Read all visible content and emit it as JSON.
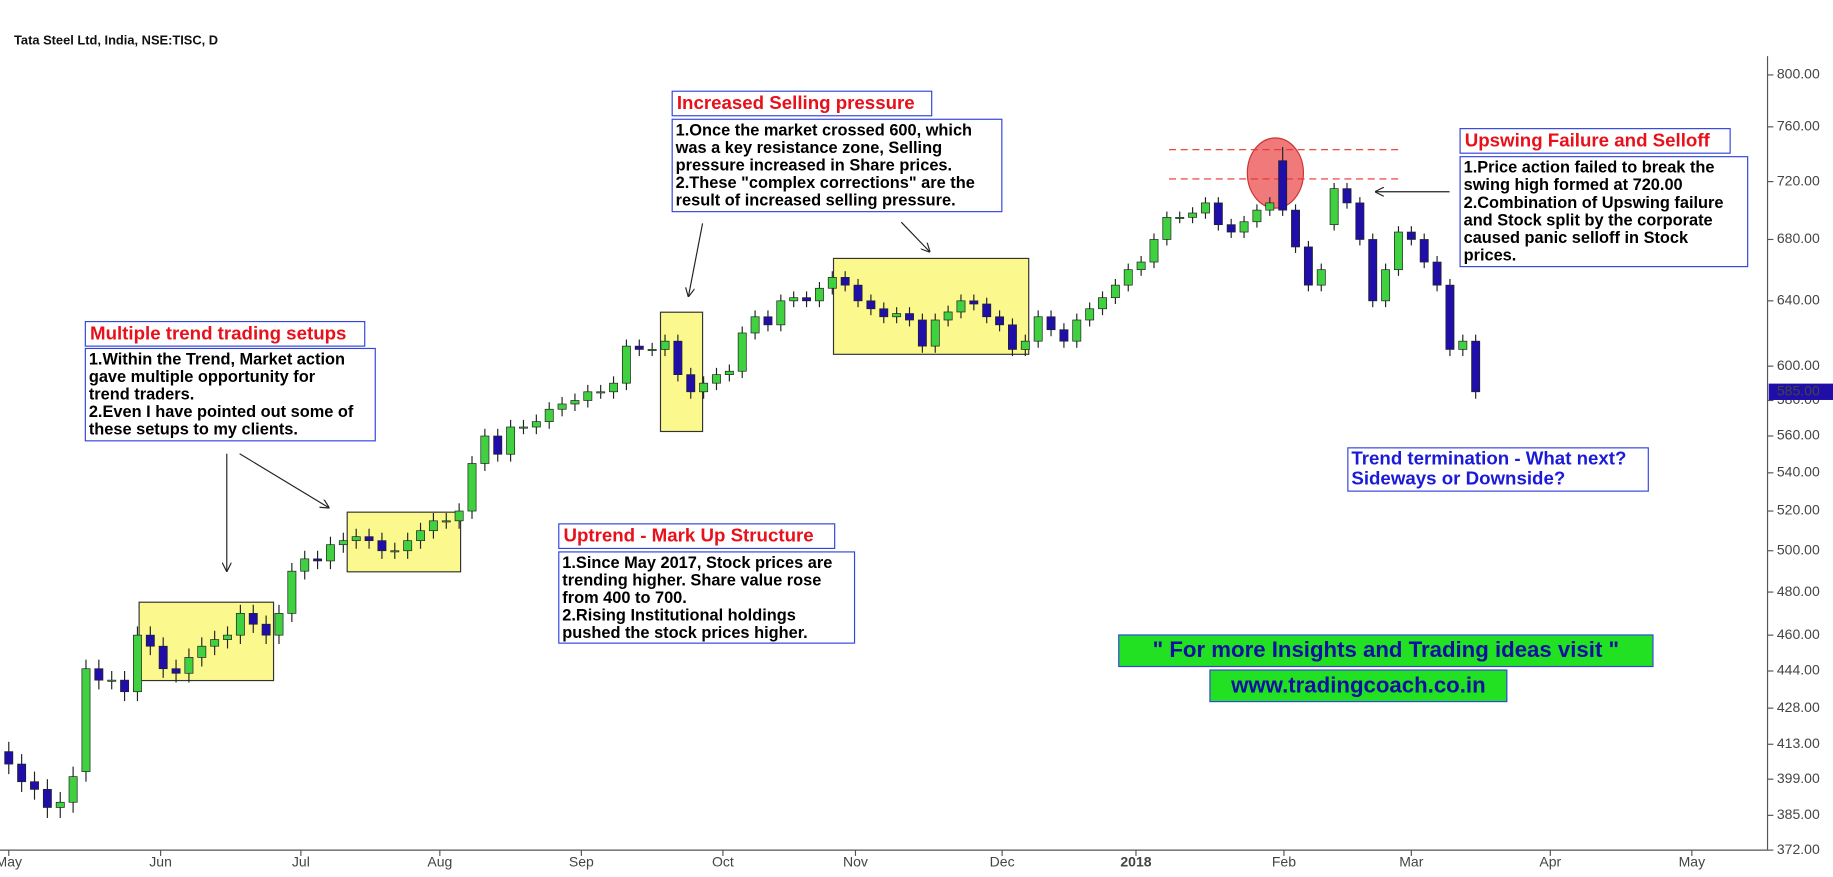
{
  "chart_data": {
    "type": "candlestick",
    "title": "Tata Steel Ltd, India, NSE:TISC, D",
    "log_scale": true,
    "up_color": "#3fd13f",
    "down_color": "#1f0fa8",
    "xlim": [
      -0.5,
      136.5
    ],
    "xticks": [
      {
        "value": 0,
        "label": "May"
      },
      {
        "value": 11.8,
        "label": "Jun"
      },
      {
        "value": 22.7,
        "label": "Jul"
      },
      {
        "value": 33.5,
        "label": "Aug"
      },
      {
        "value": 44.5,
        "label": "Sep"
      },
      {
        "value": 55.5,
        "label": "Oct"
      },
      {
        "value": 65.8,
        "label": "Nov"
      },
      {
        "value": 77.2,
        "label": "Dec"
      },
      {
        "value": 87.6,
        "label": "2018"
      },
      {
        "value": 99.1,
        "label": "Feb"
      },
      {
        "value": 109,
        "label": "Mar"
      },
      {
        "value": 119.8,
        "label": "Apr"
      },
      {
        "value": 130.8,
        "label": "May"
      }
    ],
    "ylim": [
      372,
      815
    ],
    "yticks": [
      {
        "value": 800,
        "label": "800.00"
      },
      {
        "value": 760,
        "label": "760.00"
      },
      {
        "value": 720,
        "label": "720.00"
      },
      {
        "value": 680,
        "label": "680.00"
      },
      {
        "value": 640,
        "label": "640.00"
      },
      {
        "value": 600,
        "label": "600.00"
      },
      {
        "value": 580,
        "label": "580.00"
      },
      {
        "value": 560,
        "label": "560.00"
      },
      {
        "value": 540,
        "label": "540.00"
      },
      {
        "value": 520,
        "label": "520.00"
      },
      {
        "value": 500,
        "label": "500.00"
      },
      {
        "value": 480,
        "label": "480.00"
      },
      {
        "value": 460,
        "label": "460.00"
      },
      {
        "value": 444,
        "label": "444.00"
      },
      {
        "value": 428,
        "label": "428.00"
      },
      {
        "value": 413,
        "label": "413.00"
      },
      {
        "value": 399,
        "label": "399.00"
      },
      {
        "value": 385,
        "label": "385.00"
      },
      {
        "value": 372,
        "label": "372.00"
      }
    ],
    "last_price": {
      "value": 585,
      "label": "585.00"
    },
    "open": [
      410,
      405,
      398,
      395,
      388,
      390,
      402,
      445,
      440,
      440,
      435,
      460,
      455,
      445,
      443,
      450,
      455,
      458,
      460,
      470,
      465,
      460,
      470,
      490,
      496,
      495,
      503,
      505,
      507,
      505,
      500,
      500,
      505,
      510,
      515,
      515,
      520,
      545,
      560,
      550,
      565,
      565,
      568,
      575,
      578,
      580,
      585,
      585,
      590,
      612,
      610,
      610,
      615,
      595,
      585,
      590,
      595,
      597,
      620,
      630,
      625,
      640,
      642,
      640,
      648,
      655,
      650,
      640,
      635,
      630,
      632,
      628,
      612,
      628,
      633,
      640,
      638,
      630,
      625,
      610,
      615,
      630,
      622,
      615,
      628,
      635,
      642,
      650,
      660,
      665,
      680,
      695,
      695,
      698,
      705,
      690,
      685,
      692,
      700,
      735,
      700,
      675,
      650,
      690,
      715,
      705,
      680,
      640,
      660,
      685,
      680,
      665,
      650,
      610,
      615
    ],
    "high": [
      414,
      409,
      402,
      399,
      394,
      404,
      449,
      449,
      444,
      444,
      464,
      464,
      459,
      449,
      454,
      459,
      462,
      464,
      474,
      474,
      469,
      474,
      494,
      500,
      500,
      507,
      509,
      511,
      511,
      509,
      504,
      509,
      514,
      519,
      519,
      524,
      549,
      564,
      564,
      569,
      569,
      572,
      579,
      582,
      584,
      589,
      589,
      594,
      616,
      616,
      614,
      619,
      619,
      599,
      594,
      599,
      601,
      624,
      634,
      634,
      644,
      646,
      646,
      652,
      659,
      659,
      654,
      644,
      639,
      636,
      636,
      632,
      632,
      637,
      644,
      644,
      642,
      634,
      629,
      619,
      634,
      634,
      626,
      632,
      639,
      646,
      654,
      664,
      669,
      684,
      699,
      699,
      702,
      709,
      709,
      694,
      696,
      704,
      709,
      745,
      704,
      679,
      664,
      719,
      719,
      709,
      684,
      664,
      689,
      689,
      684,
      669,
      654,
      619,
      619
    ],
    "low": [
      401,
      394,
      391,
      384,
      384,
      386,
      398,
      436,
      436,
      431,
      431,
      451,
      441,
      439,
      439,
      446,
      451,
      454,
      456,
      461,
      456,
      456,
      466,
      486,
      491,
      491,
      499,
      501,
      501,
      496,
      496,
      496,
      501,
      506,
      511,
      511,
      516,
      541,
      546,
      546,
      561,
      561,
      564,
      571,
      574,
      576,
      581,
      581,
      586,
      606,
      606,
      606,
      591,
      581,
      581,
      586,
      591,
      593,
      616,
      621,
      621,
      636,
      636,
      636,
      644,
      646,
      636,
      631,
      626,
      626,
      624,
      608,
      608,
      624,
      629,
      634,
      626,
      621,
      606,
      606,
      611,
      618,
      611,
      611,
      624,
      631,
      638,
      646,
      656,
      661,
      676,
      691,
      691,
      694,
      686,
      681,
      681,
      688,
      696,
      696,
      671,
      646,
      646,
      686,
      701,
      676,
      636,
      636,
      656,
      676,
      661,
      646,
      606,
      606,
      581
    ],
    "close": [
      405,
      398,
      395,
      388,
      390,
      400,
      445,
      440,
      440,
      435,
      460,
      455,
      445,
      443,
      450,
      455,
      458,
      460,
      470,
      465,
      460,
      470,
      490,
      496,
      495,
      503,
      505,
      507,
      505,
      500,
      500,
      505,
      510,
      515,
      515,
      520,
      545,
      560,
      550,
      565,
      565,
      568,
      575,
      578,
      580,
      585,
      585,
      590,
      612,
      610,
      610,
      615,
      595,
      585,
      590,
      595,
      597,
      620,
      630,
      625,
      640,
      642,
      640,
      648,
      655,
      650,
      640,
      635,
      630,
      632,
      628,
      612,
      628,
      633,
      640,
      638,
      630,
      625,
      610,
      615,
      630,
      622,
      615,
      628,
      635,
      642,
      650,
      660,
      665,
      680,
      695,
      695,
      698,
      705,
      690,
      685,
      692,
      700,
      705,
      700,
      675,
      650,
      660,
      715,
      705,
      680,
      640,
      660,
      685,
      680,
      665,
      650,
      610,
      615,
      585
    ],
    "annotations": [
      {
        "title": "Multiple trend trading setups",
        "lines": [
          "1.Within the Trend, Market action",
          "gave multiple opportunity for",
          "trend traders.",
          "2.Even I have pointed out some of",
          "these setups to my clients."
        ]
      },
      {
        "title": "Uptrend - Mark Up Structure",
        "lines": [
          "1.Since May 2017, Stock prices are",
          "trending higher. Share value rose",
          "from 400 to 700.",
          "2.Rising Institutional holdings",
          "pushed the stock prices higher."
        ]
      },
      {
        "title": "Increased Selling pressure",
        "lines": [
          "1.Once the market crossed 600, which",
          "was a key resistance zone, Selling",
          "pressure increased in Share prices.",
          "2.These \"complex corrections\" are the",
          "result of increased selling pressure."
        ]
      },
      {
        "title": "Upswing Failure and Selloff",
        "lines": [
          "1.Price action failed to break the",
          "swing high formed at 720.00",
          "2.Combination of Upswing failure",
          "and Stock split by the corporate",
          "caused panic selloff in Stock",
          "prices."
        ]
      }
    ],
    "question": [
      "Trend termination - What next?",
      "Sideways or Downside?"
    ],
    "promo": [
      " \" For more Insights and Trading ideas visit \" ",
      "www.tradingcoach.co.in"
    ]
  }
}
